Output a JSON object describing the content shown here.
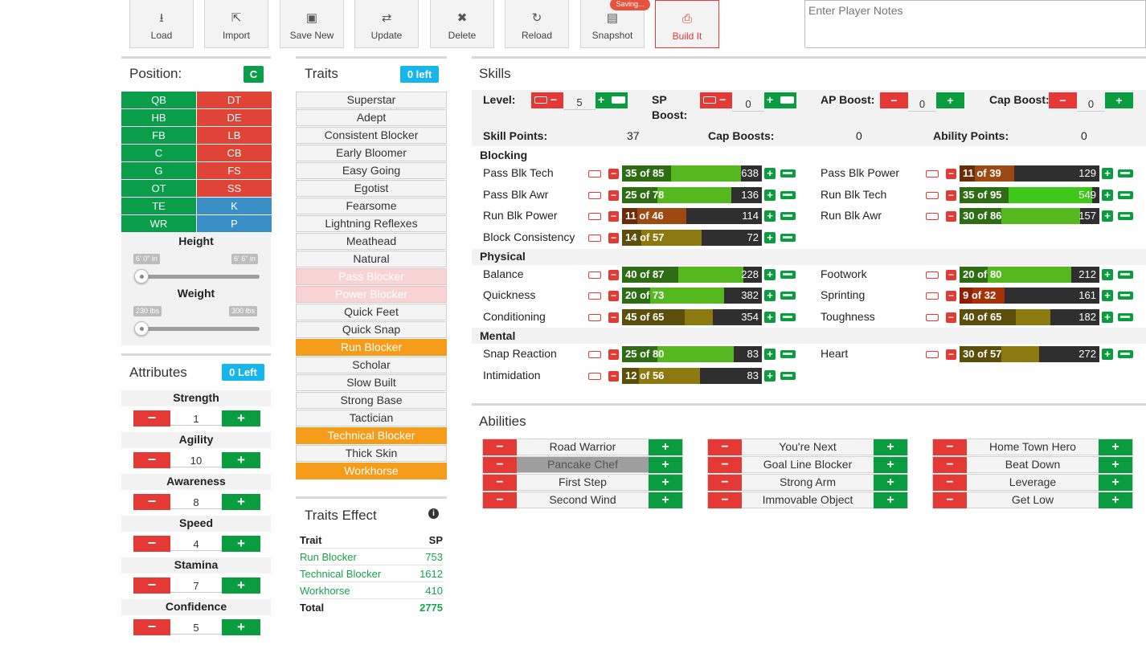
{
  "toolbar": {
    "buttons": [
      {
        "label": "Load",
        "icon": "download-icon"
      },
      {
        "label": "Import",
        "icon": "share-icon"
      },
      {
        "label": "Save New",
        "icon": "save-icon"
      },
      {
        "label": "Update",
        "icon": "retweet-icon"
      },
      {
        "label": "Delete",
        "icon": "close-icon"
      },
      {
        "label": "Reload",
        "icon": "reload-icon"
      },
      {
        "label": "Snapshot",
        "icon": "image-icon"
      },
      {
        "label": "Build It",
        "icon": "print-icon"
      }
    ],
    "saving_badge": "Saving...",
    "notes_placeholder": "Enter Player Notes"
  },
  "position": {
    "title": "Position:",
    "selected": "C",
    "offense": [
      "QB",
      "HB",
      "FB",
      "C",
      "G",
      "OT",
      "TE",
      "WR"
    ],
    "defense": [
      "DT",
      "DE",
      "LB",
      "CB",
      "FS",
      "SS"
    ],
    "special": [
      "K",
      "P"
    ],
    "height": {
      "label": "Height",
      "min": "6' 0\" in",
      "max": "6' 6\" in",
      "level": 0
    },
    "weight": {
      "label": "Weight",
      "min": "230 lbs",
      "max": "300 lbs",
      "level": 0
    }
  },
  "attributes": {
    "title": "Attributes",
    "badge": "0 Left",
    "items": [
      {
        "label": "Strength",
        "value": "1"
      },
      {
        "label": "Agility",
        "value": "10"
      },
      {
        "label": "Awareness",
        "value": "8"
      },
      {
        "label": "Speed",
        "value": "4"
      },
      {
        "label": "Stamina",
        "value": "7"
      },
      {
        "label": "Confidence",
        "value": "5"
      }
    ]
  },
  "traits": {
    "title": "Traits",
    "badge": "0 left",
    "items": [
      {
        "label": "Superstar",
        "state": "normal"
      },
      {
        "label": "Adept",
        "state": "normal"
      },
      {
        "label": "Consistent Blocker",
        "state": "normal"
      },
      {
        "label": "Early Bloomer",
        "state": "normal"
      },
      {
        "label": "Easy Going",
        "state": "normal"
      },
      {
        "label": "Egotist",
        "state": "normal"
      },
      {
        "label": "Fearsome",
        "state": "normal"
      },
      {
        "label": "Lightning Reflexes",
        "state": "normal"
      },
      {
        "label": "Meathead",
        "state": "normal"
      },
      {
        "label": "Natural",
        "state": "normal"
      },
      {
        "label": "Pass Blocker",
        "state": "disabled"
      },
      {
        "label": "Power Blocker",
        "state": "disabled"
      },
      {
        "label": "Quick Feet",
        "state": "normal"
      },
      {
        "label": "Quick Snap",
        "state": "normal"
      },
      {
        "label": "Run Blocker",
        "state": "selected"
      },
      {
        "label": "Scholar",
        "state": "normal"
      },
      {
        "label": "Slow Built",
        "state": "normal"
      },
      {
        "label": "Strong Base",
        "state": "normal"
      },
      {
        "label": "Tactician",
        "state": "normal"
      },
      {
        "label": "Technical Blocker",
        "state": "selected"
      },
      {
        "label": "Thick Skin",
        "state": "normal"
      },
      {
        "label": "Workhorse",
        "state": "selected"
      }
    ]
  },
  "traits_effect": {
    "title": "Traits Effect",
    "col_trait": "Trait",
    "col_sp": "SP",
    "rows": [
      {
        "trait": "Run Blocker",
        "sp": "753"
      },
      {
        "trait": "Technical Blocker",
        "sp": "1612"
      },
      {
        "trait": "Workhorse",
        "sp": "410"
      }
    ],
    "total_label": "Total",
    "total_value": "2775"
  },
  "skills": {
    "title": "Skills",
    "level_label": "Level:",
    "level_value": "5",
    "sp_boost_label_1": "SP",
    "sp_boost_label_2": "Boost:",
    "sp_boost_value": "0",
    "ap_boost_label": "AP Boost:",
    "ap_boost_value": "0",
    "cap_boost_label": "Cap Boost:",
    "cap_boost_value": "0",
    "skill_points_label": "Skill Points:",
    "skill_points_value": "37",
    "cap_boosts_label": "Cap Boosts:",
    "cap_boosts_value": "0",
    "ability_points_label": "Ability Points:",
    "ability_points_value": "0",
    "sections": [
      {
        "name": "Blocking"
      },
      {
        "name": "Physical"
      },
      {
        "name": "Mental"
      }
    ],
    "items": [
      {
        "name": "Pass Blk Tech",
        "text": "35 of 85",
        "cost": "638",
        "cur": 35,
        "cap": 85,
        "col": 0,
        "row": 0
      },
      {
        "name": "Pass Blk Awr",
        "text": "25 of 78",
        "cost": "136",
        "cur": 25,
        "cap": 78,
        "col": 0,
        "row": 1
      },
      {
        "name": "Run Blk Power",
        "text": "11 of 46",
        "cost": "114",
        "cur": 11,
        "cap": 46,
        "col": 0,
        "row": 2
      },
      {
        "name": "Block Consistency",
        "text": "14 of 57",
        "cost": "72",
        "cur": 14,
        "cap": 57,
        "col": 0,
        "row": 3
      },
      {
        "name": "Pass Blk Power",
        "text": "11 of 39",
        "cost": "129",
        "cur": 11,
        "cap": 39,
        "col": 1,
        "row": 0
      },
      {
        "name": "Run Blk Tech",
        "text": "35 of 95",
        "cost": "549",
        "cur": 35,
        "cap": 95,
        "col": 1,
        "row": 1
      },
      {
        "name": "Run Blk Awr",
        "text": "30 of 86",
        "cost": "157",
        "cur": 30,
        "cap": 86,
        "col": 1,
        "row": 2
      },
      {
        "name": "Balance",
        "text": "40 of 87",
        "cost": "228",
        "cur": 40,
        "cap": 87,
        "col": 0,
        "row": 4
      },
      {
        "name": "Quickness",
        "text": "20 of 73",
        "cost": "382",
        "cur": 20,
        "cap": 73,
        "col": 0,
        "row": 5
      },
      {
        "name": "Conditioning",
        "text": "45 of 65",
        "cost": "354",
        "cur": 45,
        "cap": 65,
        "col": 0,
        "row": 6
      },
      {
        "name": "Footwork",
        "text": "20 of 80",
        "cost": "212",
        "cur": 20,
        "cap": 80,
        "col": 1,
        "row": 4
      },
      {
        "name": "Sprinting",
        "text": "9 of 32",
        "cost": "161",
        "cur": 9,
        "cap": 32,
        "col": 1,
        "row": 5
      },
      {
        "name": "Toughness",
        "text": "40 of 65",
        "cost": "182",
        "cur": 40,
        "cap": 65,
        "col": 1,
        "row": 6
      },
      {
        "name": "Snap Reaction",
        "text": "25 of 80",
        "cost": "83",
        "cur": 25,
        "cap": 80,
        "col": 0,
        "row": 7
      },
      {
        "name": "Intimidation",
        "text": "12 of 56",
        "cost": "83",
        "cur": 12,
        "cap": 56,
        "col": 0,
        "row": 8
      },
      {
        "name": "Heart",
        "text": "30 of 57",
        "cost": "272",
        "cur": 30,
        "cap": 57,
        "col": 1,
        "row": 7
      }
    ]
  },
  "abilities": {
    "title": "Abilities",
    "columns": [
      [
        "Road Warrior",
        "Pancake Chef",
        "First Step",
        "Second Wind"
      ],
      [
        "You're Next",
        "Goal Line Blocker",
        "Strong Arm",
        "Immovable Object"
      ],
      [
        "Home Town Hero",
        "Beat Down",
        "Leverage",
        "Get Low"
      ]
    ],
    "highlighted": "Pancake Chef"
  },
  "colors": {
    "offense": "#0a9d4a",
    "defense": "#e04436",
    "special": "#3a8fc7",
    "badge_blue": "#16b5ea",
    "selected_trait": "#f59c1a"
  }
}
